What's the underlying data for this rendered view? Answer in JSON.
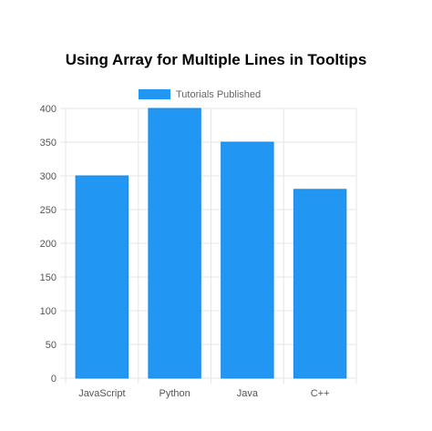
{
  "chart_data": {
    "type": "bar",
    "title": "Using Array for Multiple Lines in Tooltips",
    "categories": [
      "JavaScript",
      "Python",
      "Java",
      "C++"
    ],
    "series": [
      {
        "name": "Tutorials Published",
        "values": [
          300,
          400,
          350,
          280
        ],
        "color": "#2196F3"
      }
    ],
    "ylim": [
      0,
      400
    ],
    "yticks": [
      0,
      50,
      100,
      150,
      200,
      250,
      300,
      350,
      400
    ],
    "grid": true,
    "legend_position": "top"
  }
}
